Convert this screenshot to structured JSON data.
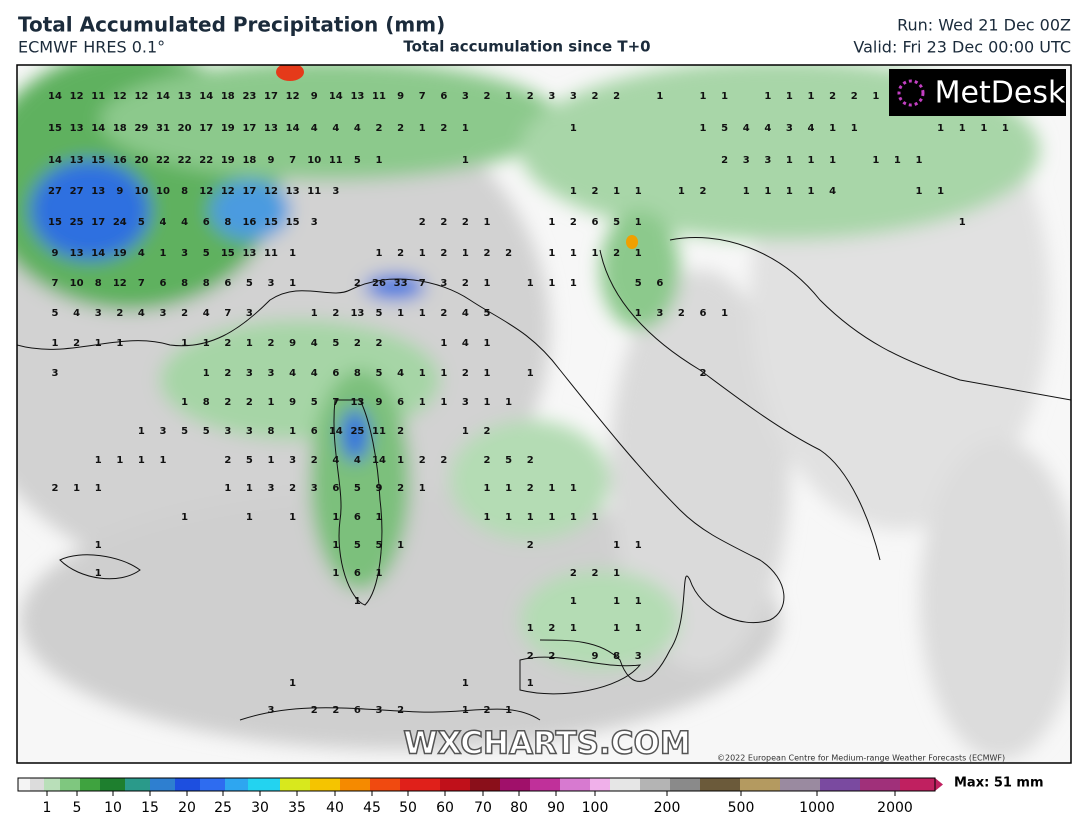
{
  "header": {
    "title": "Total Accumulated Precipitation (mm)",
    "subtitle": "ECMWF HRES 0.1°",
    "center": "Total accumulation since T+0",
    "run": "Run: Wed 21 Dec 00Z",
    "valid": "Valid: Fri 23 Dec 00:00 UTC"
  },
  "map": {
    "logo": "MetDesk",
    "watermark": "WXCHARTS.COM",
    "copyright": "©2022 European Centre for Medium-range Weather Forecasts (ECMWF)",
    "grid_values": [
      [
        14,
        12,
        11,
        12,
        12,
        14,
        13,
        14,
        18,
        23,
        17,
        12,
        9,
        14,
        13,
        11,
        9,
        7,
        6,
        3,
        2,
        1,
        2,
        3,
        3,
        2,
        2,
        null,
        1,
        null,
        1,
        1,
        null,
        1,
        1,
        1,
        2,
        2,
        1
      ],
      [
        15,
        13,
        14,
        18,
        29,
        31,
        20,
        17,
        19,
        17,
        13,
        14,
        4,
        4,
        4,
        2,
        2,
        1,
        2,
        1,
        null,
        null,
        null,
        null,
        1,
        null,
        null,
        null,
        null,
        null,
        1,
        5,
        4,
        4,
        3,
        4,
        1,
        1,
        null,
        null,
        null,
        1,
        1,
        1,
        1
      ],
      [
        14,
        13,
        15,
        16,
        20,
        22,
        22,
        22,
        19,
        18,
        9,
        7,
        10,
        11,
        5,
        1,
        null,
        null,
        null,
        1,
        null,
        null,
        null,
        null,
        null,
        null,
        null,
        null,
        null,
        null,
        null,
        2,
        3,
        3,
        1,
        1,
        1,
        null,
        1,
        1,
        1
      ],
      [
        27,
        27,
        13,
        9,
        10,
        10,
        8,
        12,
        12,
        17,
        12,
        13,
        11,
        3,
        null,
        null,
        null,
        null,
        null,
        null,
        null,
        null,
        null,
        null,
        1,
        2,
        1,
        1,
        null,
        1,
        2,
        null,
        1,
        1,
        1,
        1,
        4,
        null,
        null,
        null,
        1,
        1
      ],
      [
        15,
        25,
        17,
        24,
        5,
        4,
        4,
        6,
        8,
        16,
        15,
        15,
        3,
        null,
        null,
        null,
        null,
        2,
        2,
        2,
        1,
        null,
        null,
        1,
        2,
        6,
        5,
        1,
        null,
        null,
        null,
        null,
        null,
        null,
        null,
        null,
        null,
        null,
        null,
        null,
        null,
        null,
        1
      ],
      [
        9,
        13,
        14,
        19,
        4,
        1,
        3,
        5,
        15,
        13,
        11,
        1,
        null,
        null,
        null,
        1,
        2,
        1,
        2,
        1,
        2,
        2,
        null,
        1,
        1,
        1,
        2,
        1
      ],
      [
        7,
        10,
        8,
        12,
        7,
        6,
        8,
        8,
        6,
        5,
        3,
        1,
        null,
        null,
        2,
        26,
        33,
        7,
        3,
        2,
        1,
        null,
        1,
        1,
        1,
        null,
        null,
        5,
        6
      ],
      [
        5,
        4,
        3,
        2,
        4,
        3,
        2,
        4,
        7,
        3,
        null,
        null,
        1,
        2,
        13,
        5,
        1,
        1,
        2,
        4,
        5,
        null,
        null,
        null,
        null,
        null,
        null,
        1,
        3,
        2,
        6,
        1
      ],
      [
        1,
        2,
        1,
        1,
        null,
        null,
        1,
        1,
        2,
        1,
        2,
        9,
        4,
        5,
        2,
        2,
        null,
        null,
        1,
        4,
        1
      ],
      [
        3,
        null,
        null,
        null,
        null,
        null,
        null,
        1,
        2,
        3,
        3,
        4,
        4,
        6,
        8,
        5,
        4,
        1,
        1,
        2,
        1,
        null,
        1,
        null,
        null,
        null,
        null,
        null,
        null,
        null,
        2
      ],
      [
        null,
        null,
        null,
        null,
        null,
        null,
        1,
        8,
        2,
        2,
        1,
        9,
        5,
        7,
        13,
        9,
        6,
        1,
        1,
        3,
        1,
        1
      ],
      [
        null,
        null,
        null,
        null,
        1,
        3,
        5,
        5,
        3,
        3,
        8,
        1,
        6,
        14,
        25,
        11,
        2,
        null,
        null,
        1,
        2
      ],
      [
        null,
        null,
        1,
        1,
        1,
        1,
        null,
        null,
        2,
        5,
        1,
        3,
        2,
        4,
        4,
        14,
        1,
        2,
        2,
        null,
        2,
        5,
        2
      ],
      [
        2,
        1,
        1,
        null,
        null,
        null,
        null,
        null,
        1,
        1,
        3,
        2,
        3,
        6,
        5,
        9,
        2,
        1,
        null,
        null,
        1,
        1,
        2,
        1,
        1
      ],
      [
        null,
        null,
        null,
        null,
        null,
        null,
        1,
        null,
        null,
        1,
        null,
        1,
        null,
        1,
        6,
        1,
        null,
        null,
        null,
        null,
        1,
        1,
        1,
        1,
        1,
        1
      ],
      [
        null,
        null,
        1,
        null,
        null,
        null,
        null,
        null,
        null,
        null,
        null,
        null,
        null,
        1,
        5,
        5,
        1,
        null,
        null,
        null,
        null,
        null,
        2,
        null,
        null,
        null,
        1,
        1
      ],
      [
        null,
        null,
        1,
        null,
        null,
        null,
        null,
        null,
        null,
        null,
        null,
        null,
        null,
        1,
        6,
        1,
        null,
        null,
        null,
        null,
        null,
        null,
        null,
        null,
        2,
        2,
        1
      ],
      [
        null,
        null,
        null,
        null,
        null,
        null,
        null,
        null,
        null,
        null,
        null,
        null,
        null,
        null,
        1,
        null,
        null,
        null,
        null,
        null,
        null,
        null,
        null,
        null,
        1,
        null,
        1,
        1
      ],
      [
        null,
        null,
        null,
        null,
        null,
        null,
        null,
        null,
        null,
        null,
        null,
        null,
        null,
        null,
        null,
        null,
        null,
        null,
        null,
        null,
        null,
        null,
        1,
        2,
        1,
        null,
        1,
        1
      ],
      [
        null,
        null,
        null,
        null,
        null,
        null,
        null,
        null,
        null,
        null,
        null,
        null,
        null,
        null,
        null,
        null,
        null,
        null,
        null,
        null,
        null,
        null,
        2,
        2,
        null,
        9,
        8,
        3
      ],
      [
        null,
        null,
        null,
        null,
        null,
        null,
        null,
        null,
        null,
        null,
        null,
        1,
        null,
        null,
        null,
        null,
        null,
        null,
        null,
        1,
        null,
        null,
        1
      ],
      [
        null,
        null,
        null,
        null,
        null,
        null,
        null,
        null,
        null,
        null,
        3,
        null,
        2,
        2,
        6,
        3,
        2,
        null,
        null,
        1,
        2,
        1
      ]
    ]
  },
  "colorbar": {
    "ticks": [
      1,
      5,
      10,
      15,
      20,
      25,
      30,
      35,
      40,
      45,
      50,
      60,
      70,
      80,
      90,
      100,
      200,
      500,
      1000,
      2000
    ],
    "max_label": "Max: 51 mm"
  }
}
